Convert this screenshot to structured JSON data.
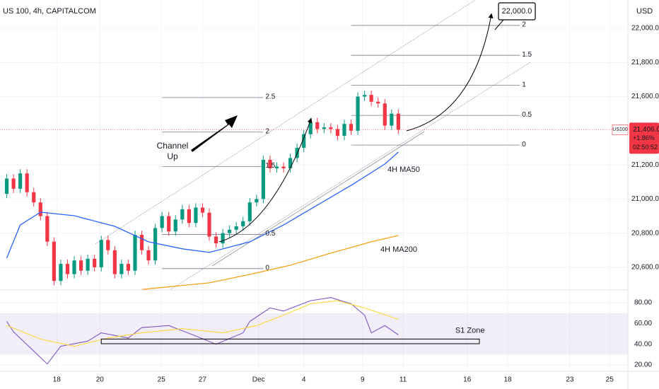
{
  "chart_data": {
    "type": "candlestick",
    "title": "US 100, 4h, CAPITALCOM",
    "currency": "USD",
    "up_color": "#089981",
    "down_color": "#f23645",
    "open": [
      21030,
      21120,
      21060,
      21150,
      21040,
      20980,
      20900,
      20750,
      20520,
      20620,
      20560,
      20640,
      20580,
      20650,
      20600,
      20760,
      20700,
      20560,
      20620,
      20580,
      20790,
      20700,
      20640,
      20830,
      20900,
      20810,
      20880,
      20940,
      20860,
      20950,
      20920,
      20780,
      20740,
      20800,
      20820,
      20840,
      20870,
      20980,
      21000,
      21230,
      21180,
      21190,
      21180,
      21240,
      21300,
      21380,
      21450,
      21410,
      21420,
      21410,
      21370,
      21440,
      21400,
      21600,
      21610,
      21570,
      21560,
      21430,
      21500
    ],
    "high": [
      21145,
      21145,
      21175,
      21175,
      21065,
      21005,
      20925,
      20775,
      20645,
      20645,
      20665,
      20665,
      20675,
      20675,
      20785,
      20785,
      20725,
      20645,
      20645,
      20815,
      20815,
      20725,
      20855,
      20925,
      20925,
      20905,
      20965,
      20965,
      20975,
      20975,
      20945,
      20805,
      20825,
      20845,
      20865,
      20895,
      21005,
      21025,
      21255,
      21255,
      21215,
      21215,
      21265,
      21325,
      21405,
      21475,
      21475,
      21445,
      21445,
      21435,
      21465,
      21465,
      21625,
      21635,
      21635,
      21595,
      21585,
      21525,
      21525
    ],
    "low": [
      21005,
      21035,
      21035,
      21015,
      20955,
      20875,
      20725,
      20495,
      20495,
      20535,
      20535,
      20555,
      20555,
      20575,
      20575,
      20675,
      20535,
      20535,
      20555,
      20555,
      20675,
      20615,
      20615,
      20805,
      20785,
      20785,
      20855,
      20835,
      20835,
      20895,
      20755,
      20715,
      20715,
      20775,
      20795,
      20815,
      20845,
      20955,
      20975,
      21155,
      21155,
      21155,
      21155,
      21215,
      21275,
      21355,
      21385,
      21385,
      21385,
      21345,
      21345,
      21375,
      21375,
      21575,
      21545,
      21535,
      21405,
      21405,
      21381
    ],
    "close": [
      21120,
      21060,
      21150,
      21040,
      20980,
      20900,
      20750,
      20520,
      20620,
      20560,
      20640,
      20580,
      20650,
      20600,
      20760,
      20700,
      20560,
      20620,
      20580,
      20790,
      20700,
      20640,
      20830,
      20900,
      20810,
      20880,
      20940,
      20860,
      20950,
      20920,
      20780,
      20740,
      20800,
      20820,
      20840,
      20870,
      20980,
      21000,
      21230,
      21180,
      21190,
      21180,
      21240,
      21300,
      21380,
      21450,
      21410,
      21420,
      21410,
      21370,
      21440,
      21400,
      21600,
      21610,
      21570,
      21560,
      21430,
      21500,
      21406
    ],
    "xlim": [
      -1,
      92
    ],
    "xticks": [
      {
        "value": 7.4,
        "label": "18"
      },
      {
        "value": 13.8,
        "label": "20"
      },
      {
        "value": 22.9,
        "label": "25"
      },
      {
        "value": 29,
        "label": "27"
      },
      {
        "value": 37.3,
        "label": "Dec"
      },
      {
        "value": 44,
        "label": "4"
      },
      {
        "value": 52.7,
        "label": "9"
      },
      {
        "value": 58.7,
        "label": "11"
      },
      {
        "value": 68.2,
        "label": "16"
      },
      {
        "value": 74.2,
        "label": "18"
      },
      {
        "value": 83.4,
        "label": "23"
      },
      {
        "value": 89.3,
        "label": "25"
      }
    ],
    "ylim": [
      20467,
      22166
    ],
    "yticks": [
      {
        "value": 22000,
        "label": "22,000.0"
      },
      {
        "value": 21800,
        "label": "21,800.0"
      },
      {
        "value": 21600,
        "label": "21,600.0"
      },
      {
        "value": 21200,
        "label": "21,200.0"
      },
      {
        "value": 21000,
        "label": "21,000.0"
      },
      {
        "value": 20800,
        "label": "20,800.0"
      },
      {
        "value": 20600,
        "label": "20,600.0"
      }
    ],
    "lines": [
      {
        "name": "4H MA50",
        "color": "#2962ff",
        "x": [
          0,
          2,
          5,
          10,
          16,
          21,
          26,
          30,
          36,
          41,
          46,
          51,
          56,
          58
        ],
        "values": [
          20654,
          20848,
          20923,
          20902,
          20840,
          20749,
          20708,
          20687,
          20749,
          20848,
          20964,
          21080,
          21205,
          21275
        ]
      },
      {
        "name": "4H MA200",
        "color": "#f7a21b",
        "x": [
          20,
          30,
          36,
          42,
          48,
          54,
          58
        ],
        "values": [
          20470,
          20509,
          20558,
          20612,
          20683,
          20749,
          20786
        ]
      }
    ],
    "last_price": {
      "value": 21406,
      "label": "21,406.0",
      "change": "+1.86%",
      "countdown": "02:50:52",
      "symbol": "US100"
    },
    "fib": [
      {
        "x": [
          23,
          38
        ],
        "levels": [
          2.5,
          2,
          1.5,
          0.5,
          0
        ],
        "prices": [
          21594,
          21392,
          21190,
          20792,
          20592
        ]
      },
      {
        "x": [
          51,
          76
        ],
        "levels": [
          2,
          1.5,
          1,
          0.5,
          0
        ],
        "prices": [
          22017,
          21842,
          21666,
          21490,
          21316
        ]
      }
    ],
    "target": "22,000.0",
    "annotation": [
      "Channel",
      "Up"
    ],
    "rsi": {
      "ylim": [
        13.9,
        92.3
      ],
      "yticks": [
        {
          "value": 80,
          "label": "80.00"
        },
        {
          "value": 60,
          "label": "60.00"
        },
        {
          "value": 40,
          "label": "40.00"
        },
        {
          "value": 20,
          "label": "20.00"
        }
      ],
      "band": [
        30,
        70
      ],
      "series": [
        {
          "color": "#7e57c2",
          "x": [
            0,
            1,
            6,
            8,
            12,
            14,
            18,
            20,
            24,
            28,
            31,
            35,
            36,
            39,
            41,
            45,
            48,
            51,
            53,
            54,
            56,
            58
          ],
          "values": [
            62,
            52,
            21,
            38,
            43,
            51,
            46,
            56,
            58,
            48,
            40,
            51,
            62,
            75,
            72,
            82,
            85,
            79,
            68,
            51,
            58,
            49
          ]
        },
        {
          "color": "#fdd835",
          "x": [
            0,
            5,
            10,
            15,
            20,
            26,
            32,
            37,
            41,
            45,
            49,
            53,
            58
          ],
          "values": [
            58,
            45,
            38,
            46,
            51,
            55,
            51,
            58,
            68,
            79,
            82,
            75,
            64
          ]
        }
      ],
      "zone": {
        "label": "S1 Zone",
        "x": [
          14,
          70
        ],
        "range": [
          40.5,
          45
        ]
      }
    }
  }
}
